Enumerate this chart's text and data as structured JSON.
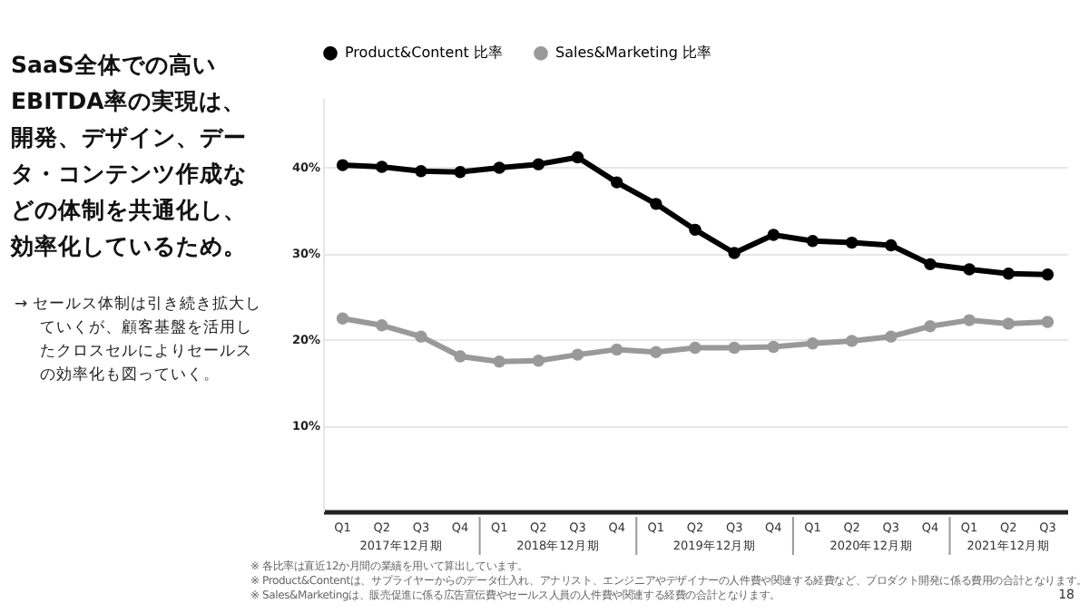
{
  "chart_data": {
    "type": "line",
    "title": "SaaS全体での高いEBITDA率の実現は、開発、デザイン、データ・コンテンツ作成などの体制を共通化し、効率化しているため。",
    "subtitle": "→ セールス体制は引き続き拡大していくが、顧客基盤を活用したクロスセルによりセールスの効率化も図っていく。",
    "categories": [
      "Q1",
      "Q2",
      "Q3",
      "Q4",
      "Q1",
      "Q2",
      "Q3",
      "Q4",
      "Q1",
      "Q2",
      "Q3",
      "Q4",
      "Q1",
      "Q2",
      "Q3",
      "Q4",
      "Q1",
      "Q2",
      "Q3"
    ],
    "series": [
      {
        "name": "Product&Content 比率",
        "color": "#000000",
        "values": [
          40.2,
          40.0,
          39.5,
          39.4,
          39.9,
          40.3,
          41.1,
          38.2,
          35.7,
          32.7,
          30.0,
          32.1,
          31.4,
          31.2,
          30.9,
          28.7,
          28.1,
          27.6,
          27.5
        ]
      },
      {
        "name": "Sales&Marketing 比率",
        "color": "#999999",
        "values": [
          22.4,
          21.6,
          20.3,
          18.0,
          17.4,
          17.5,
          18.2,
          18.8,
          18.5,
          19.0,
          19.0,
          19.1,
          19.5,
          19.8,
          20.3,
          21.5,
          22.2,
          21.8,
          22.0
        ]
      }
    ],
    "ylim": [
      0,
      48
    ],
    "yticks": [
      {
        "value": 10,
        "label": "10%"
      },
      {
        "value": 20,
        "label": "20%"
      },
      {
        "value": 30,
        "label": "30%"
      },
      {
        "value": 40,
        "label": "40%"
      }
    ],
    "grid": "y",
    "legend": "top left",
    "marker": "circle",
    "line_style": "solid",
    "annotations": [
      "2017年12月期",
      "2018年12月期",
      "2019年12月期",
      "2020年12月期",
      "2021年12月期",
      "※ 各比率は直近12か月間の業績を用いて算出しています。",
      "※ Product&Contentは、サプライヤーからのデータ仕入れ、アナリスト、エンジニアやデザイナーの人件費や関連する経費など、プロダクト開発に係る費用の合計となります。",
      "※ Sales&Marketingは、販売促進に係る広告宣伝費やセールス人員の人件費や関連する経費の合計となります。",
      "18"
    ]
  }
}
